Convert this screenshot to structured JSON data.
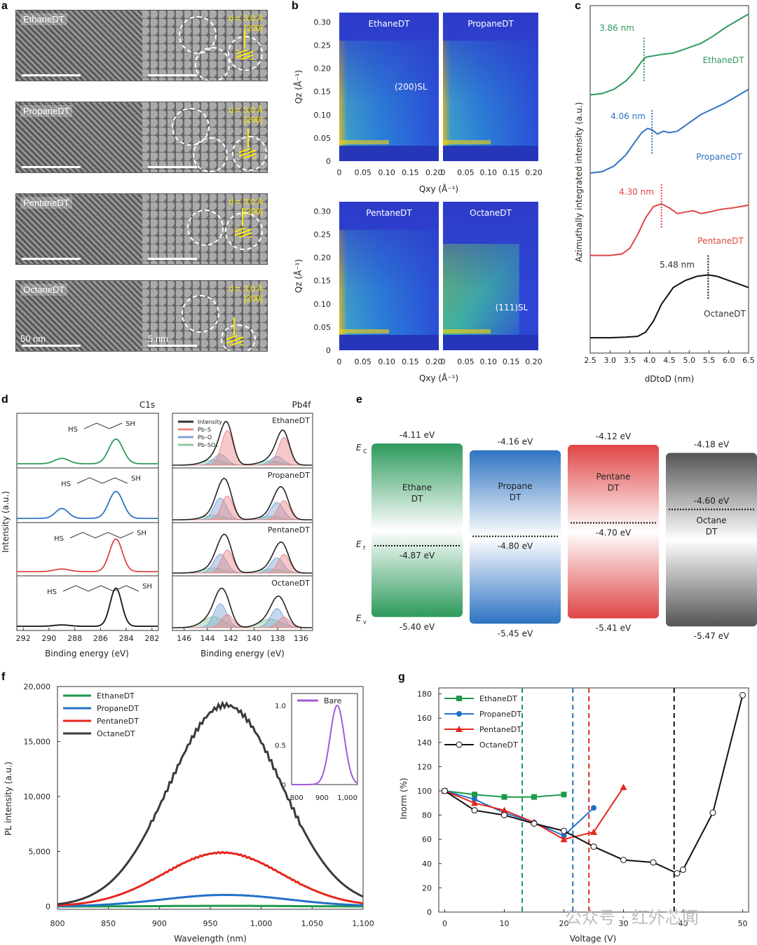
{
  "panels": {
    "a": "a",
    "b": "b",
    "c": "c",
    "d": "d",
    "e": "e",
    "f": "f",
    "g": "g"
  },
  "panel_a": {
    "images": [
      {
        "label": "EthaneDT",
        "d": "d = 3.0 Å",
        "plane": "[200]"
      },
      {
        "label": "PropaneDT",
        "d": "d = 3.0 Å",
        "plane": "[200]"
      },
      {
        "label": "PentaneDT",
        "d": "d = 3.0 Å",
        "plane": "[200]"
      },
      {
        "label": "OctaneDT",
        "d": "d = 3.0 Å",
        "plane": "[200]"
      }
    ],
    "scalebar_left": "50 nm",
    "scalebar_right": "5 nm"
  },
  "chart_data": [
    {
      "panel": "b",
      "type": "heatmap",
      "maps": [
        {
          "name": "EthaneDT",
          "annotation": "(200)SL"
        },
        {
          "name": "PropaneDT",
          "annotation": ""
        },
        {
          "name": "PentaneDT",
          "annotation": ""
        },
        {
          "name": "OctaneDT",
          "annotation": "(111)SL"
        }
      ],
      "xlabel": "Qxy (Å⁻¹)",
      "ylabel": "Qz (Å⁻¹)",
      "xticks": [
        "0",
        "0.05",
        "0.10",
        "0.15",
        "0.20"
      ],
      "yticks": [
        "0",
        "0.05",
        "0.10",
        "0.15",
        "0.20",
        "0.25",
        "0.30"
      ],
      "xlim": [
        0,
        0.21
      ],
      "ylim": [
        0,
        0.32
      ]
    },
    {
      "panel": "c",
      "type": "line",
      "xlabel": "dDtoD (nm)",
      "ylabel": "Azimuthally integrated intensity (a.u.)",
      "xticks": [
        "2.5",
        "3.0",
        "3.5",
        "4.0",
        "4.5",
        "5.0",
        "5.5",
        "6.0",
        "6.5"
      ],
      "xlim": [
        2.5,
        6.5
      ],
      "series": [
        {
          "name": "EthaneDT",
          "color": "#2e9a5c",
          "peak_label": "3.86 nm",
          "peak_x": 3.86,
          "x": [
            2.5,
            2.8,
            3.1,
            3.4,
            3.6,
            3.8,
            3.9,
            4.1,
            4.3,
            4.6,
            4.8,
            5.0,
            5.3,
            5.6,
            5.9,
            6.2,
            6.5
          ],
          "y": [
            9.7,
            9.75,
            9.9,
            10.2,
            10.5,
            10.9,
            11.05,
            11.1,
            11.15,
            11.2,
            11.3,
            11.4,
            11.55,
            11.8,
            12.1,
            12.35,
            12.6
          ]
        },
        {
          "name": "PropaneDT",
          "color": "#2f73c2",
          "peak_label": "4.06 nm",
          "peak_x": 4.06,
          "x": [
            2.5,
            2.8,
            3.1,
            3.4,
            3.6,
            3.8,
            3.95,
            4.06,
            4.2,
            4.35,
            4.5,
            4.7,
            4.9,
            5.1,
            5.3,
            5.6,
            5.9,
            6.2,
            6.5
          ],
          "y": [
            6.9,
            6.95,
            7.15,
            7.55,
            7.95,
            8.35,
            8.5,
            8.45,
            8.3,
            8.4,
            8.35,
            8.4,
            8.6,
            8.8,
            9.0,
            9.2,
            9.4,
            9.65,
            9.9
          ]
        },
        {
          "name": "PentaneDT",
          "color": "#e04545",
          "peak_label": "4.30 nm",
          "peak_x": 4.3,
          "x": [
            2.5,
            3.0,
            3.3,
            3.5,
            3.7,
            3.9,
            4.1,
            4.3,
            4.5,
            4.7,
            4.9,
            5.1,
            5.3,
            5.5,
            5.8,
            6.1,
            6.5
          ],
          "y": [
            3.95,
            3.95,
            4.0,
            4.2,
            4.7,
            5.3,
            5.7,
            5.8,
            5.65,
            5.45,
            5.5,
            5.55,
            5.45,
            5.5,
            5.6,
            5.65,
            5.75
          ]
        },
        {
          "name": "OctaneDT",
          "color": "#111111",
          "peak_label": "5.48 nm",
          "peak_x": 5.48,
          "x": [
            2.5,
            3.0,
            3.4,
            3.7,
            3.9,
            4.1,
            4.3,
            4.6,
            4.9,
            5.2,
            5.48,
            5.7,
            6.0,
            6.3,
            6.5
          ],
          "y": [
            1.0,
            1.0,
            1.02,
            1.05,
            1.2,
            1.6,
            2.2,
            2.8,
            3.05,
            3.2,
            3.25,
            3.2,
            3.05,
            2.9,
            2.8
          ]
        }
      ]
    },
    {
      "panel": "d-left",
      "type": "line",
      "title": "C1s",
      "xlabel": "Binding energy (eV)",
      "ylabel": "Intensity (a.u.)",
      "xticks": [
        "292",
        "290",
        "288",
        "286",
        "284",
        "282"
      ],
      "xlim": [
        292.5,
        281.5
      ],
      "series": [
        {
          "name": "EthaneDT",
          "color": "#2e9a5c",
          "peaks": [
            {
              "x": 289.0,
              "h": 0.12,
              "w": 0.55
            },
            {
              "x": 284.8,
              "h": 0.55,
              "w": 0.55
            }
          ],
          "molecule_label_l": "HS",
          "molecule_label_r": "SH"
        },
        {
          "name": "PropaneDT",
          "color": "#2f73c2",
          "peaks": [
            {
              "x": 289.0,
              "h": 0.22,
              "w": 0.5
            },
            {
              "x": 284.8,
              "h": 0.6,
              "w": 0.55
            }
          ],
          "molecule_label_l": "HS",
          "molecule_label_r": "SH"
        },
        {
          "name": "PentaneDT",
          "color": "#e04545",
          "peaks": [
            {
              "x": 289.0,
              "h": 0.06,
              "w": 0.6
            },
            {
              "x": 284.8,
              "h": 0.75,
              "w": 0.5
            }
          ],
          "molecule_label_l": "HS",
          "molecule_label_r": "SH"
        },
        {
          "name": "OctaneDT",
          "color": "#111111",
          "peaks": [
            {
              "x": 289.0,
              "h": 0.03,
              "w": 0.6
            },
            {
              "x": 284.8,
              "h": 0.85,
              "w": 0.45
            }
          ],
          "molecule_label_l": "HS",
          "molecule_label_r": "SH"
        }
      ]
    },
    {
      "panel": "d-right",
      "type": "line",
      "title": "Pb4f",
      "xlabel": "Binding energy (eV)",
      "xticks": [
        "146",
        "144",
        "142",
        "140",
        "138",
        "136"
      ],
      "xlim": [
        147,
        135
      ],
      "legend": [
        "Intensity",
        "Pb–S",
        "Pb–O",
        "Pb–SO₄"
      ],
      "legend_colors": [
        "#333333",
        "#e88888",
        "#7fa6d8",
        "#8fc99f"
      ],
      "rows": [
        {
          "name": "EthaneDT",
          "pbs": 0.8,
          "pbo": 0.25,
          "pbso": 0.12
        },
        {
          "name": "PropaneDT",
          "pbs": 0.55,
          "pbo": 0.5,
          "pbso": 0.1
        },
        {
          "name": "PentaneDT",
          "pbs": 0.55,
          "pbo": 0.45,
          "pbso": 0.12
        },
        {
          "name": "OctaneDT",
          "pbs": 0.3,
          "pbo": 0.55,
          "pbso": 0.25
        }
      ]
    },
    {
      "panel": "e",
      "type": "bar",
      "axis_labels": {
        "ec": "E",
        "ec_sub": "C",
        "ef": "E",
        "ef_sub": "f",
        "ev": "E",
        "ev_sub": "v"
      },
      "bands": [
        {
          "name_l1": "Ethane",
          "name_l2": "DT",
          "ec": "-4.11 eV",
          "ef": "-4.87 eV",
          "ev": "-5.40 eV",
          "color": "#2e9a5c"
        },
        {
          "name_l1": "Propane",
          "name_l2": "DT",
          "ec": "-4.16 eV",
          "ef": "-4.80 eV",
          "ev": "-5.45 eV",
          "color": "#2f73c2"
        },
        {
          "name_l1": "Pentane",
          "name_l2": "DT",
          "ec": "-4.12 eV",
          "ef": "-4.70 eV",
          "ev": "-5.41 eV",
          "color": "#e04545"
        },
        {
          "name_l1": "Octane",
          "name_l2": "DT",
          "ec": "-4.18 eV",
          "ef": "-4.60 eV",
          "ev": "-5.47 eV",
          "color": "#555555"
        }
      ],
      "ec_values": [
        -4.11,
        -4.16,
        -4.12,
        -4.18
      ],
      "ef_values": [
        -4.87,
        -4.8,
        -4.7,
        -4.6
      ],
      "ev_values": [
        -5.4,
        -5.45,
        -5.41,
        -5.47
      ]
    },
    {
      "panel": "f",
      "type": "line",
      "xlabel": "Wavelength (nm)",
      "ylabel": "PL intensity (a.u.)",
      "xticks": [
        "800",
        "850",
        "900",
        "950",
        "1,000",
        "1,050",
        "1,100"
      ],
      "yticks": [
        "0",
        "5,000",
        "10,000",
        "15,000",
        "20,000"
      ],
      "xlim": [
        800,
        1100
      ],
      "ylim": [
        0,
        20000
      ],
      "series": [
        {
          "name": "EthaneDT",
          "color": "#1d9a4d",
          "peak": 965,
          "amp": 60,
          "sigma": 60
        },
        {
          "name": "PropaneDT",
          "color": "#2370c8",
          "peak": 965,
          "amp": 1050,
          "sigma": 62
        },
        {
          "name": "PentaneDT",
          "color": "#e6251c",
          "peak": 962,
          "amp": 4900,
          "sigma": 58
        },
        {
          "name": "OctaneDT",
          "color": "#3a3a3a",
          "peak": 965,
          "amp": 18300,
          "sigma": 55
        }
      ],
      "inset": {
        "name": "Bare",
        "color": "#a25ad8",
        "xticks": [
          "800",
          "900",
          "1,000"
        ],
        "yticks": [
          "0",
          "0.5",
          "1.0"
        ],
        "xlim": [
          780,
          1040
        ],
        "ylim": [
          0,
          1.15
        ],
        "peak": 960,
        "sigma": 28
      }
    },
    {
      "panel": "g",
      "type": "scatter",
      "xlabel": "Voltage (V)",
      "ylabel": "Inorm (%)",
      "xticks": [
        "0",
        "10",
        "20",
        "30",
        "40",
        "50"
      ],
      "yticks": [
        "0",
        "20",
        "40",
        "60",
        "80",
        "100",
        "120",
        "140",
        "160",
        "180"
      ],
      "xlim": [
        -1,
        51
      ],
      "ylim": [
        0,
        185
      ],
      "series": [
        {
          "name": "EthaneDT",
          "color": "#1d9a4d",
          "marker": "square",
          "x": [
            0,
            5,
            10,
            15,
            20
          ],
          "y": [
            100,
            97,
            95,
            95,
            97
          ],
          "cutoff": 13
        },
        {
          "name": "PropaneDT",
          "color": "#2370c8",
          "marker": "circle-filled",
          "x": [
            0,
            5,
            10,
            15,
            20,
            25
          ],
          "y": [
            100,
            93,
            82,
            74,
            63,
            86
          ],
          "cutoff": 21.5
        },
        {
          "name": "PentaneDT",
          "color": "#e6251c",
          "marker": "triangle",
          "x": [
            0,
            5,
            10,
            15,
            20,
            25,
            30
          ],
          "y": [
            100,
            90,
            84,
            74,
            60,
            66,
            103
          ],
          "cutoff": 24.2
        },
        {
          "name": "OctaneDT",
          "color": "#111111",
          "marker": "circle-open",
          "x": [
            0,
            5,
            10,
            15,
            20,
            25,
            30,
            35,
            39,
            40,
            45,
            50
          ],
          "y": [
            100,
            84,
            80,
            73,
            67,
            54,
            43,
            41,
            32,
            35,
            82,
            179
          ],
          "cutoff": 38.5
        }
      ]
    }
  ],
  "watermark": "公众号 · 红外芯闻"
}
